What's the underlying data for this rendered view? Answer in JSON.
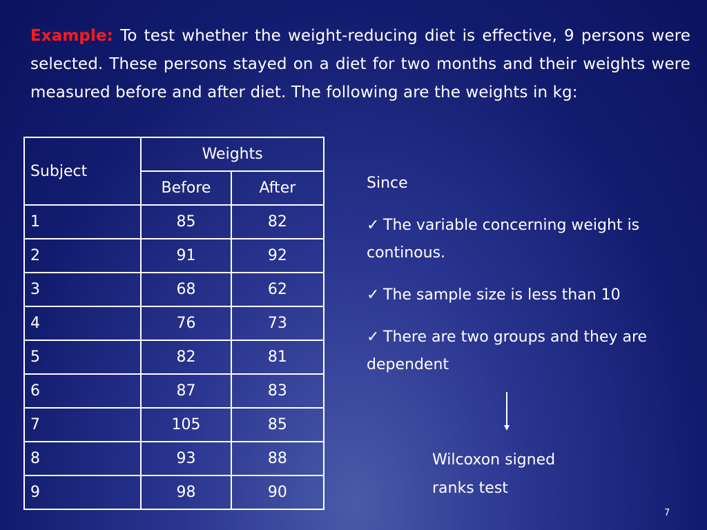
{
  "intro": {
    "label": "Example:",
    "text": " To test whether the weight-reducing diet is effective, 9 persons were selected. These persons stayed on a diet for two months and their weights were measured before and after diet. The following are the weights in kg:"
  },
  "table": {
    "subject_header": "Subject",
    "weights_header": "Weights",
    "before_header": "Before",
    "after_header": "After",
    "rows": [
      {
        "subject": "1",
        "before": "85",
        "after": "82"
      },
      {
        "subject": "2",
        "before": "91",
        "after": "92"
      },
      {
        "subject": "3",
        "before": "68",
        "after": "62"
      },
      {
        "subject": "4",
        "before": "76",
        "after": "73"
      },
      {
        "subject": "5",
        "before": "82",
        "after": "81"
      },
      {
        "subject": "6",
        "before": "87",
        "after": "83"
      },
      {
        "subject": "7",
        "before": "105",
        "after": "85"
      },
      {
        "subject": "8",
        "before": "93",
        "after": "88"
      },
      {
        "subject": "9",
        "before": "98",
        "after": "90"
      }
    ]
  },
  "reasons": {
    "since": "Since",
    "check_glyph": "✓",
    "items": [
      "The variable concerning weight is continous.",
      "The sample size is less than 10",
      "There are two groups and they are dependent"
    ]
  },
  "conclusion": {
    "line1": "Wilcoxon signed",
    "line2": "ranks test"
  },
  "slide_number": "7",
  "colors": {
    "label": "#ff1a1a",
    "text": "#ffffff",
    "background_dark": "#0b1360",
    "background_light": "#4a5aa8"
  }
}
